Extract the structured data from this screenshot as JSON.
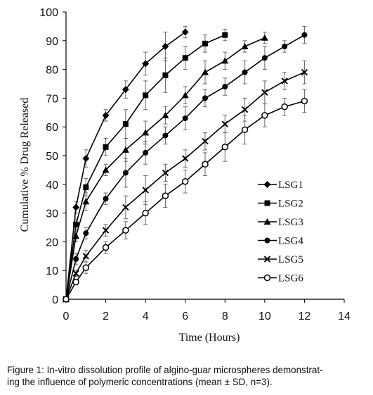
{
  "chart_data": {
    "type": "line",
    "title": "",
    "xlabel": "Time (Hours)",
    "ylabel": "Cumulative % Drug Released",
    "xlim": [
      0,
      14
    ],
    "ylim": [
      0,
      100
    ],
    "xticks": [
      0,
      2,
      4,
      6,
      8,
      10,
      12,
      14
    ],
    "yticks": [
      0,
      10,
      20,
      30,
      40,
      50,
      60,
      70,
      80,
      90,
      100
    ],
    "grid": false,
    "legend_position": "right",
    "series": [
      {
        "name": "LSG1",
        "marker": "diamond",
        "x": [
          0,
          0.5,
          1,
          2,
          3,
          4,
          5,
          6
        ],
        "y": [
          0,
          32,
          49,
          64,
          73,
          82,
          88,
          93
        ],
        "err": [
          0,
          2,
          3,
          2,
          3,
          4,
          5,
          2
        ]
      },
      {
        "name": "LSG2",
        "marker": "square",
        "x": [
          0,
          0.5,
          1,
          2,
          3,
          4,
          5,
          6,
          7,
          8
        ],
        "y": [
          0,
          26,
          39,
          53,
          61,
          71,
          78,
          84,
          89,
          92
        ],
        "err": [
          0,
          2,
          3,
          3,
          5,
          5,
          6,
          4,
          3,
          2
        ]
      },
      {
        "name": "LSG3",
        "marker": "triangle",
        "x": [
          0,
          0.5,
          1,
          2,
          3,
          4,
          5,
          6,
          7,
          8,
          9,
          10
        ],
        "y": [
          0,
          22,
          34,
          45,
          52,
          58,
          64,
          71,
          79,
          83,
          88,
          91
        ],
        "err": [
          0,
          2,
          3,
          2,
          4,
          4,
          3,
          3,
          4,
          3,
          2,
          2
        ]
      },
      {
        "name": "LSG4",
        "marker": "circle",
        "x": [
          0,
          0.5,
          1,
          2,
          3,
          4,
          5,
          6,
          7,
          8,
          9,
          10,
          11,
          12
        ],
        "y": [
          0,
          14,
          23,
          35,
          44,
          51,
          57,
          63,
          70,
          74,
          79,
          84,
          88,
          92
        ],
        "err": [
          0,
          2,
          2,
          2,
          5,
          4,
          3,
          4,
          3,
          3,
          4,
          4,
          2,
          3
        ]
      },
      {
        "name": "LSG5",
        "marker": "x",
        "x": [
          0,
          0.5,
          1,
          2,
          3,
          4,
          5,
          6,
          7,
          8,
          9,
          10,
          11,
          12
        ],
        "y": [
          0,
          9,
          15,
          24,
          32,
          38,
          44,
          49,
          55,
          61,
          66,
          72,
          76,
          79
        ],
        "err": [
          0,
          1,
          2,
          2,
          4,
          5,
          3,
          3,
          3,
          3,
          4,
          4,
          3,
          4
        ]
      },
      {
        "name": "LSG6",
        "marker": "open-circle",
        "x": [
          0,
          0.5,
          1,
          2,
          3,
          4,
          5,
          6,
          7,
          8,
          9,
          10,
          11,
          12
        ],
        "y": [
          0,
          6,
          11,
          18,
          24,
          30,
          36,
          41,
          47,
          53,
          59,
          64,
          67,
          69
        ],
        "err": [
          0,
          1,
          2,
          2,
          3,
          4,
          4,
          4,
          4,
          5,
          5,
          4,
          3,
          4
        ]
      }
    ]
  },
  "caption": {
    "line1": "Figure 1: In-vitro dissolution profile of algino-guar microspheres demonstrat-",
    "line2": "ing the influence of polymeric concentrations (mean ± SD, n=3)."
  }
}
